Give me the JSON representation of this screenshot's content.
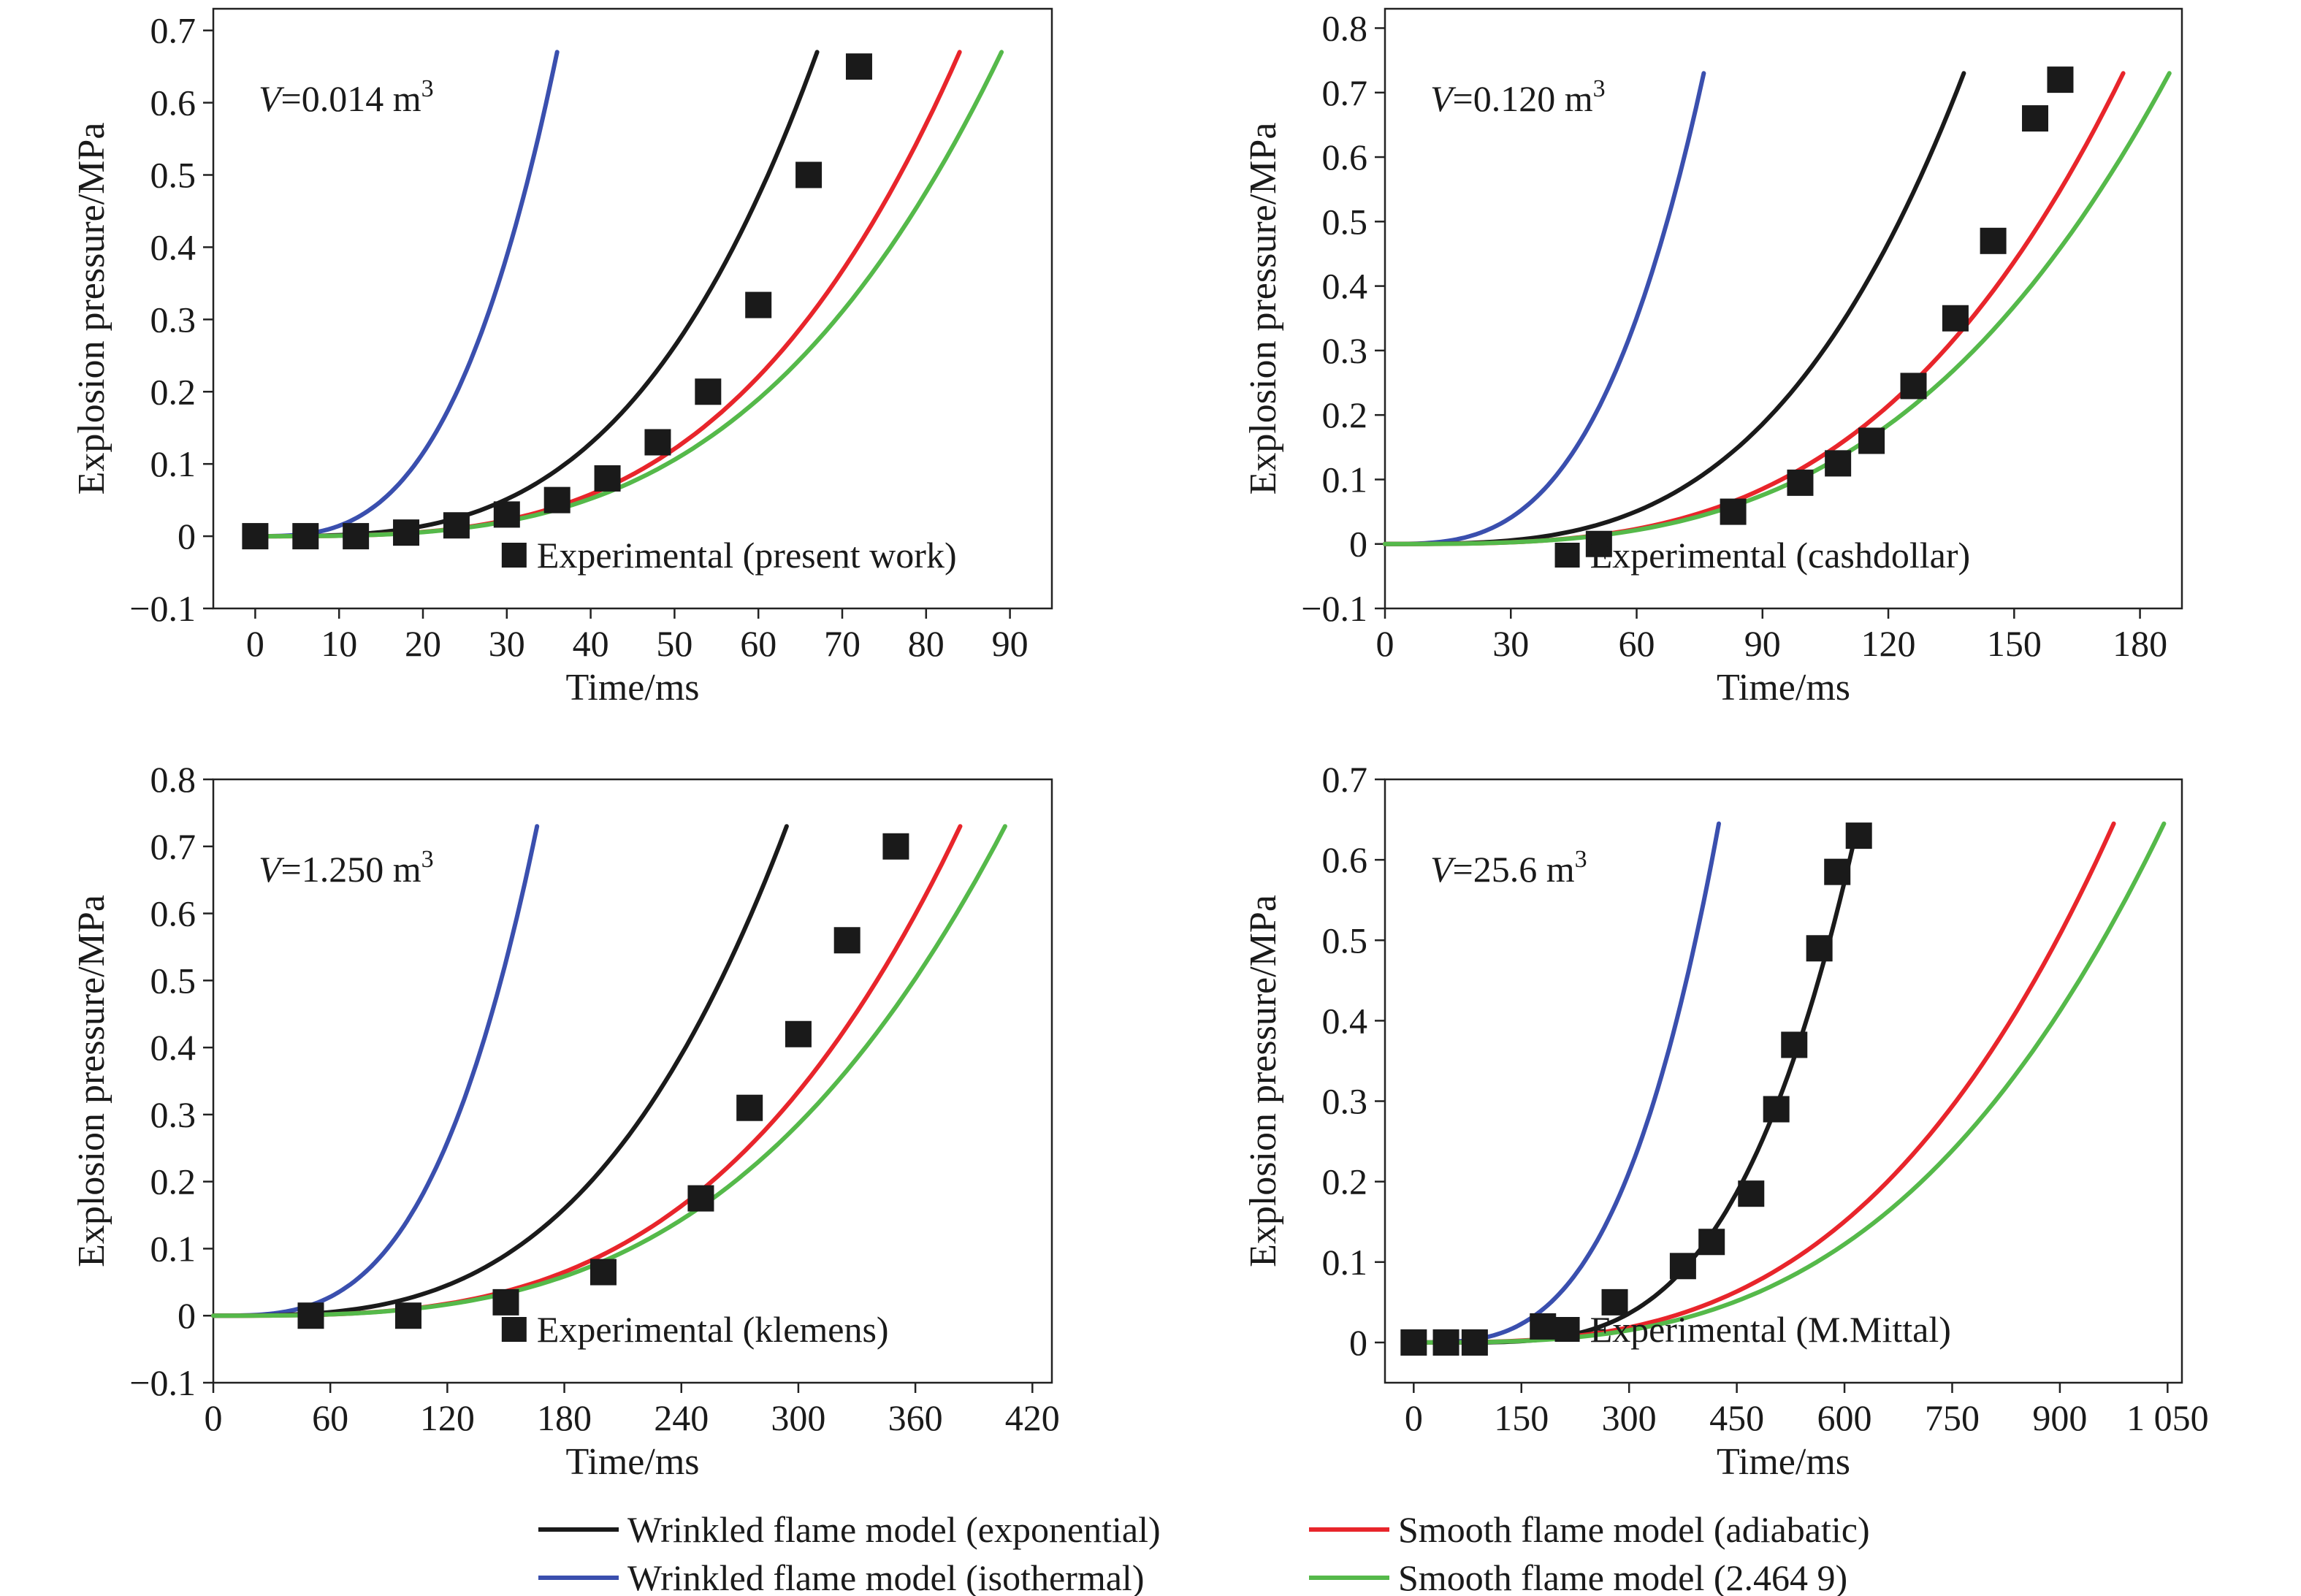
{
  "colors": {
    "exponential": "#1a1a1a",
    "isothermal": "#3a4fae",
    "adiabatic": "#e8252b",
    "smooth": "#55b94a",
    "experimental": "#1a1a1a"
  },
  "legend": [
    {
      "key": "exponential",
      "label": "Wrinkled flame model (exponential)"
    },
    {
      "key": "adiabatic",
      "label": "Smooth flame model (adiabatic)"
    },
    {
      "key": "isothermal",
      "label": "Wrinkled flame model (isothermal)"
    },
    {
      "key": "smooth",
      "label": "Smooth flame model (2.464 9)"
    }
  ],
  "chart_data": [
    {
      "type": "line",
      "panel": "top-left",
      "volume_label": {
        "prefix": "V",
        "text": "=0.014 m",
        "sup": "3"
      },
      "xlabel": "Time/ms",
      "ylabel": "Explosion pressure/MPa",
      "xlim": [
        -5,
        95
      ],
      "ylim": [
        -0.1,
        0.73
      ],
      "xticks": [
        0,
        10,
        20,
        30,
        40,
        50,
        60,
        70,
        80,
        90
      ],
      "xtick_labels": [
        "0",
        "10",
        "20",
        "30",
        "40",
        "50",
        "60",
        "70",
        "80",
        "90"
      ],
      "yticks": [
        -0.1,
        0,
        0.1,
        0.2,
        0.3,
        0.4,
        0.5,
        0.6,
        0.7
      ],
      "ytick_labels": [
        "−0.1",
        "0",
        "0.1",
        "0.2",
        "0.3",
        "0.4",
        "0.5",
        "0.6",
        "0.7"
      ],
      "experimental_label": "Experimental (present work)",
      "series": [
        {
          "key": "isothermal",
          "x0": 0,
          "x_end": 36,
          "y_end": 0.67,
          "power": 3
        },
        {
          "key": "exponential",
          "x0": 0,
          "x_end": 67,
          "y_end": 0.67,
          "power": 3.2
        },
        {
          "key": "adiabatic",
          "x0": 0,
          "x_end": 84,
          "y_end": 0.67,
          "power": 3.3
        },
        {
          "key": "smooth",
          "x0": 0,
          "x_end": 89,
          "y_end": 0.67,
          "power": 3.2
        }
      ],
      "experimental": {
        "x": [
          0,
          6,
          12,
          18,
          24,
          30,
          36,
          42,
          48,
          54,
          60,
          66,
          72
        ],
        "y": [
          0,
          0,
          0,
          0.005,
          0.015,
          0.03,
          0.05,
          0.08,
          0.13,
          0.2,
          0.32,
          0.5,
          0.65
        ]
      }
    },
    {
      "type": "line",
      "panel": "top-right",
      "volume_label": {
        "prefix": "V",
        "text": "=0.120 m",
        "sup": "3"
      },
      "xlabel": "Time/ms",
      "ylabel": "Explosion pressure/MPa",
      "xlim": [
        0,
        190
      ],
      "ylim": [
        -0.1,
        0.83
      ],
      "xticks": [
        0,
        30,
        60,
        90,
        120,
        150,
        180
      ],
      "xtick_labels": [
        "0",
        "30",
        "60",
        "90",
        "120",
        "150",
        "180"
      ],
      "yticks": [
        -0.1,
        0,
        0.1,
        0.2,
        0.3,
        0.4,
        0.5,
        0.6,
        0.7,
        0.8
      ],
      "ytick_labels": [
        "−0.1",
        "0",
        "0.1",
        "0.2",
        "0.3",
        "0.4",
        "0.5",
        "0.6",
        "0.7",
        "0.8"
      ],
      "experimental_label": "Experimental (cashdollar)",
      "series": [
        {
          "key": "isothermal",
          "x0": 0,
          "x_end": 76,
          "y_end": 0.73,
          "power": 3.1
        },
        {
          "key": "exponential",
          "x0": 0,
          "x_end": 138,
          "y_end": 0.73,
          "power": 3.2
        },
        {
          "key": "adiabatic",
          "x0": 0,
          "x_end": 176,
          "y_end": 0.73,
          "power": 3.2
        },
        {
          "key": "smooth",
          "x0": 0,
          "x_end": 187,
          "y_end": 0.73,
          "power": 3.1
        }
      ],
      "experimental": {
        "x": [
          51,
          83,
          99,
          108,
          116,
          126,
          136,
          145,
          155,
          161
        ],
        "y": [
          0,
          0.05,
          0.095,
          0.125,
          0.16,
          0.245,
          0.35,
          0.47,
          0.66,
          0.72
        ]
      }
    },
    {
      "type": "line",
      "panel": "bottom-left",
      "volume_label": {
        "prefix": "V",
        "text": "=1.250 m",
        "sup": "3"
      },
      "xlabel": "Time/ms",
      "ylabel": "Explosion pressure/MPa",
      "xlim": [
        0,
        430
      ],
      "ylim": [
        -0.1,
        0.8
      ],
      "xticks": [
        0,
        60,
        120,
        180,
        240,
        300,
        360,
        420
      ],
      "xtick_labels": [
        "0",
        "60",
        "120",
        "180",
        "240",
        "300",
        "360",
        "420"
      ],
      "yticks": [
        -0.1,
        0,
        0.1,
        0.2,
        0.3,
        0.4,
        0.5,
        0.6,
        0.7,
        0.8
      ],
      "ytick_labels": [
        "−0.1",
        "0",
        "0.1",
        "0.2",
        "0.3",
        "0.4",
        "0.5",
        "0.6",
        "0.7",
        "0.8"
      ],
      "experimental_label": "Experimental (klemens)",
      "series": [
        {
          "key": "isothermal",
          "x0": 0,
          "x_end": 166,
          "y_end": 0.73,
          "power": 3.2
        },
        {
          "key": "exponential",
          "x0": 0,
          "x_end": 294,
          "y_end": 0.73,
          "power": 3.1
        },
        {
          "key": "adiabatic",
          "x0": 0,
          "x_end": 383,
          "y_end": 0.73,
          "power": 3.2
        },
        {
          "key": "smooth",
          "x0": 0,
          "x_end": 406,
          "y_end": 0.73,
          "power": 3.1
        }
      ],
      "experimental": {
        "x": [
          50,
          100,
          150,
          200,
          250,
          275,
          300,
          325,
          350
        ],
        "y": [
          0,
          0,
          0.02,
          0.065,
          0.175,
          0.31,
          0.42,
          0.56,
          0.7
        ]
      }
    },
    {
      "type": "line",
      "panel": "bottom-right",
      "volume_label": {
        "prefix": "V",
        "text": "=25.6 m",
        "sup": "3"
      },
      "xlabel": "Time/ms",
      "ylabel": "Explosion pressure/MPa",
      "xlim": [
        -40,
        1070
      ],
      "ylim": [
        -0.05,
        0.7
      ],
      "xticks": [
        0,
        150,
        300,
        450,
        600,
        750,
        900,
        1050
      ],
      "xtick_labels": [
        "0",
        "150",
        "300",
        "450",
        "600",
        "750",
        "900",
        "1 050"
      ],
      "yticks": [
        0,
        0.1,
        0.2,
        0.3,
        0.4,
        0.5,
        0.6,
        0.7
      ],
      "ytick_labels": [
        "0",
        "0.1",
        "0.2",
        "0.3",
        "0.4",
        "0.5",
        "0.6",
        "0.7"
      ],
      "experimental_label": "Experimental (M.Mittal)",
      "series": [
        {
          "key": "isothermal",
          "x0": 0,
          "x_end": 425,
          "y_end": 0.645,
          "power": 3.2
        },
        {
          "key": "exponential",
          "x0": 40,
          "x_end": 615,
          "y_end": 0.63,
          "power": 3.6
        },
        {
          "key": "adiabatic",
          "x0": 0,
          "x_end": 975,
          "y_end": 0.645,
          "power": 3.0
        },
        {
          "key": "smooth",
          "x0": 0,
          "x_end": 1045,
          "y_end": 0.645,
          "power": 3.0
        }
      ],
      "experimental": {
        "x": [
          0,
          45,
          85,
          180,
          280,
          375,
          415,
          470,
          505,
          530,
          565,
          590,
          620
        ],
        "y": [
          0,
          0,
          0,
          0.02,
          0.05,
          0.095,
          0.125,
          0.185,
          0.29,
          0.37,
          0.49,
          0.585,
          0.63
        ]
      }
    }
  ]
}
